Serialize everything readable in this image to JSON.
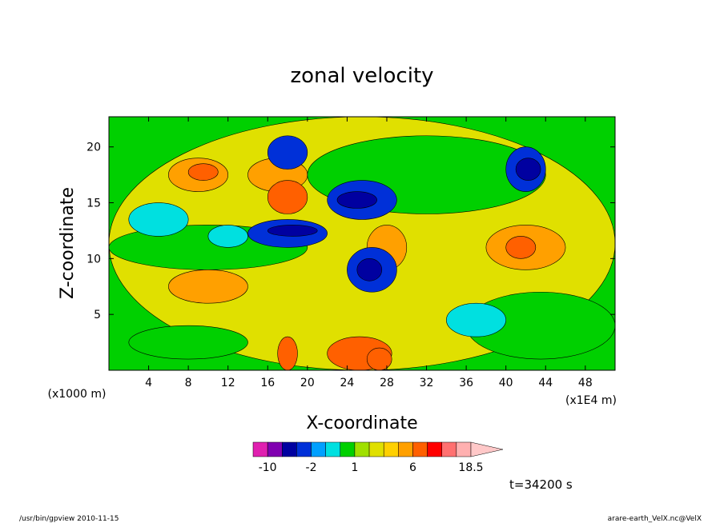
{
  "chart_data": {
    "type": "heatmap",
    "title": "zonal velocity",
    "xlabel": "X-coordinate",
    "ylabel": "Z-coordinate",
    "x_unit_left": "(x1000 m)",
    "x_unit_right": "(x1E4 m)",
    "xlim": [
      0,
      51
    ],
    "ylim": [
      0,
      22.7
    ],
    "xticks": [
      4,
      8,
      12,
      16,
      20,
      24,
      28,
      32,
      36,
      40,
      44,
      48
    ],
    "yticks": [
      5,
      10,
      15,
      20
    ],
    "colorbar": {
      "levels": [
        -12,
        -10,
        -8,
        -4,
        -2,
        -1,
        0,
        1,
        2,
        3,
        4,
        6,
        9,
        12,
        15,
        18.5
      ],
      "tick_labels": [
        "-10",
        "-2",
        "1",
        "6",
        "18.5"
      ],
      "colors": [
        "#e020b0",
        "#8000b0",
        "#0000a0",
        "#0030d8",
        "#00a0ff",
        "#00e0e0",
        "#00d000",
        "#a0e000",
        "#e0e000",
        "#ffd000",
        "#ffa000",
        "#ff6000",
        "#ff0000",
        "#ff7070",
        "#ffb0b0",
        "#ffc8c8"
      ]
    },
    "time_label": "t=34200 s",
    "grid": false
  },
  "footer": {
    "left": "/usr/bin/gpview   2010-11-15",
    "right": "arare-earth_VelX.nc@VelX"
  }
}
